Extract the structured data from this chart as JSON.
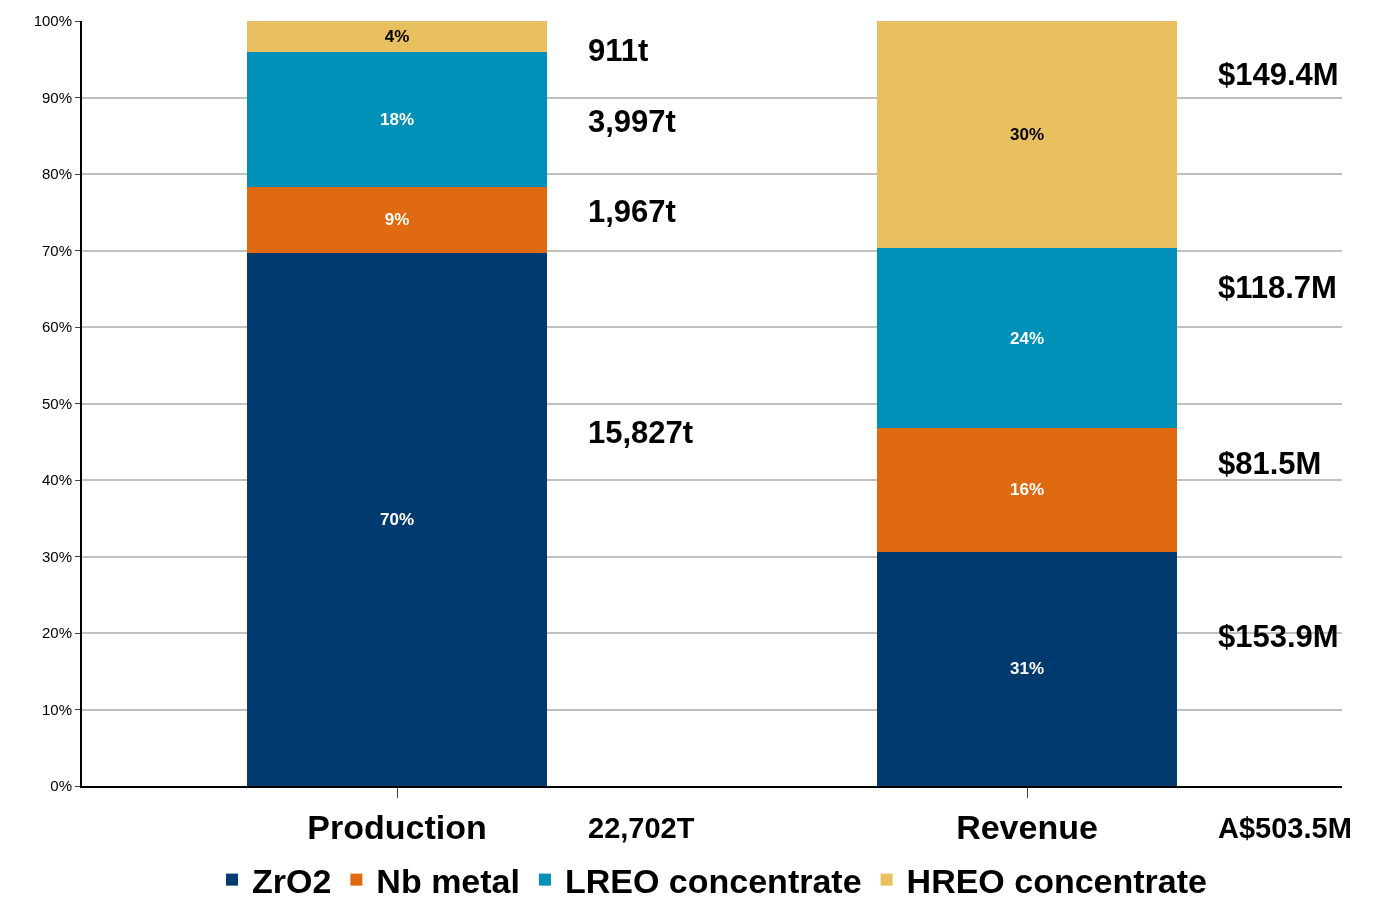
{
  "chart_data": {
    "type": "bar",
    "stacked": true,
    "categories": [
      "Production",
      "Revenue"
    ],
    "series": [
      {
        "name": "ZrO2",
        "color": "#003a6e",
        "values": [
          69.7,
          30.6
        ],
        "value_labels": [
          "70%",
          "31%"
        ]
      },
      {
        "name": "Nb metal",
        "color": "#e06a12",
        "values": [
          8.6,
          16.2
        ],
        "value_labels": [
          "9%",
          "16%"
        ]
      },
      {
        "name": "LREO concentrate",
        "color": "#0090b8",
        "values": [
          17.7,
          23.5
        ],
        "value_labels": [
          "18%",
          "24%"
        ]
      },
      {
        "name": "HREO concentrate",
        "color": "#e8c060",
        "values": [
          4.0,
          29.7
        ],
        "value_labels": [
          "4%",
          "30%"
        ]
      }
    ],
    "ylim": [
      0,
      100
    ],
    "yticks": [
      {
        "value": 0,
        "label": "0%"
      },
      {
        "value": 10,
        "label": "10%"
      },
      {
        "value": 20,
        "label": "20%"
      },
      {
        "value": 30,
        "label": "30%"
      },
      {
        "value": 40,
        "label": "40%"
      },
      {
        "value": 50,
        "label": "50%"
      },
      {
        "value": 60,
        "label": "60%"
      },
      {
        "value": 70,
        "label": "70%"
      },
      {
        "value": 80,
        "label": "80%"
      },
      {
        "value": 90,
        "label": "90%"
      },
      {
        "value": 100,
        "label": "100%"
      }
    ],
    "grid": "y",
    "legend": "bottom",
    "annotations": [
      "911t",
      "3,997t",
      "1,967t",
      "15,827t",
      "22,702T",
      "$149.4M",
      "$118.7M",
      "$81.5M",
      "$153.9M",
      "A$503.5M"
    ]
  }
}
